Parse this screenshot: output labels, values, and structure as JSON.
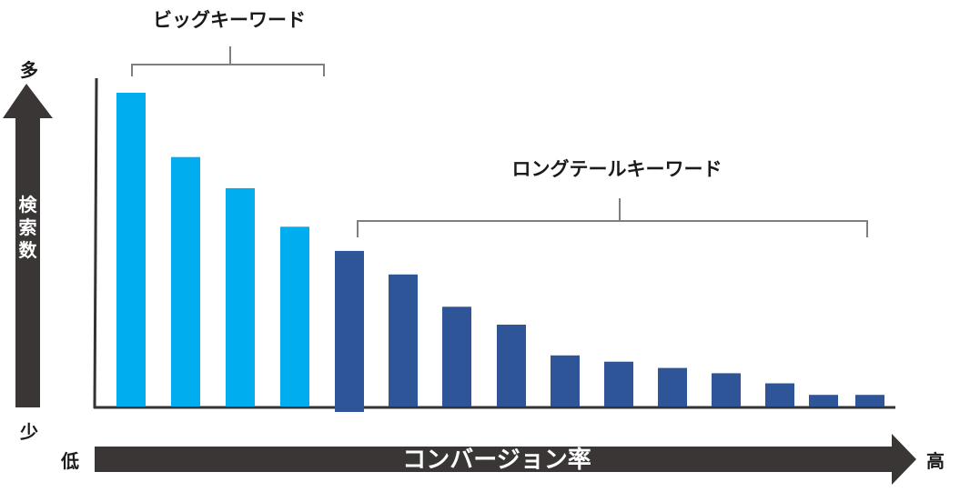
{
  "colors": {
    "big_keyword_bar": "#00ADEF",
    "long_tail_bar": "#2E5597",
    "axis_arrow": "#3A3635",
    "axis_line": "#333333",
    "bracket": "#7F7F7F",
    "text": "#1A1A1A",
    "arrow_text": "#FFFFFF"
  },
  "y_axis": {
    "label": "検索数",
    "top_label": "多",
    "bottom_label": "少"
  },
  "x_axis": {
    "label": "コンバージョン率",
    "left_label": "低",
    "right_label": "高"
  },
  "groups": [
    {
      "label": "ビッグキーワード",
      "bar_count": 4
    },
    {
      "label": "ロングテールキーワード",
      "bar_count": 11
    }
  ],
  "chart_data": {
    "type": "bar",
    "categories": [
      "",
      "",
      "",
      "",
      "",
      "",
      "",
      "",
      "",
      "",
      "",
      "",
      "",
      "",
      ""
    ],
    "values": [
      100,
      79.5,
      69.6,
      57.3,
      49.6,
      42.1,
      31.8,
      26.1,
      16.3,
      14.3,
      12.3,
      10.6,
      7.4,
      3.7,
      3.7
    ],
    "bar_group": [
      0,
      0,
      0,
      0,
      1,
      1,
      1,
      1,
      1,
      1,
      1,
      1,
      1,
      1,
      1
    ],
    "title": "",
    "xlabel": "コンバージョン率",
    "ylabel": "検索数",
    "ylim": [
      0,
      100
    ],
    "grid": false,
    "legend": "none"
  }
}
